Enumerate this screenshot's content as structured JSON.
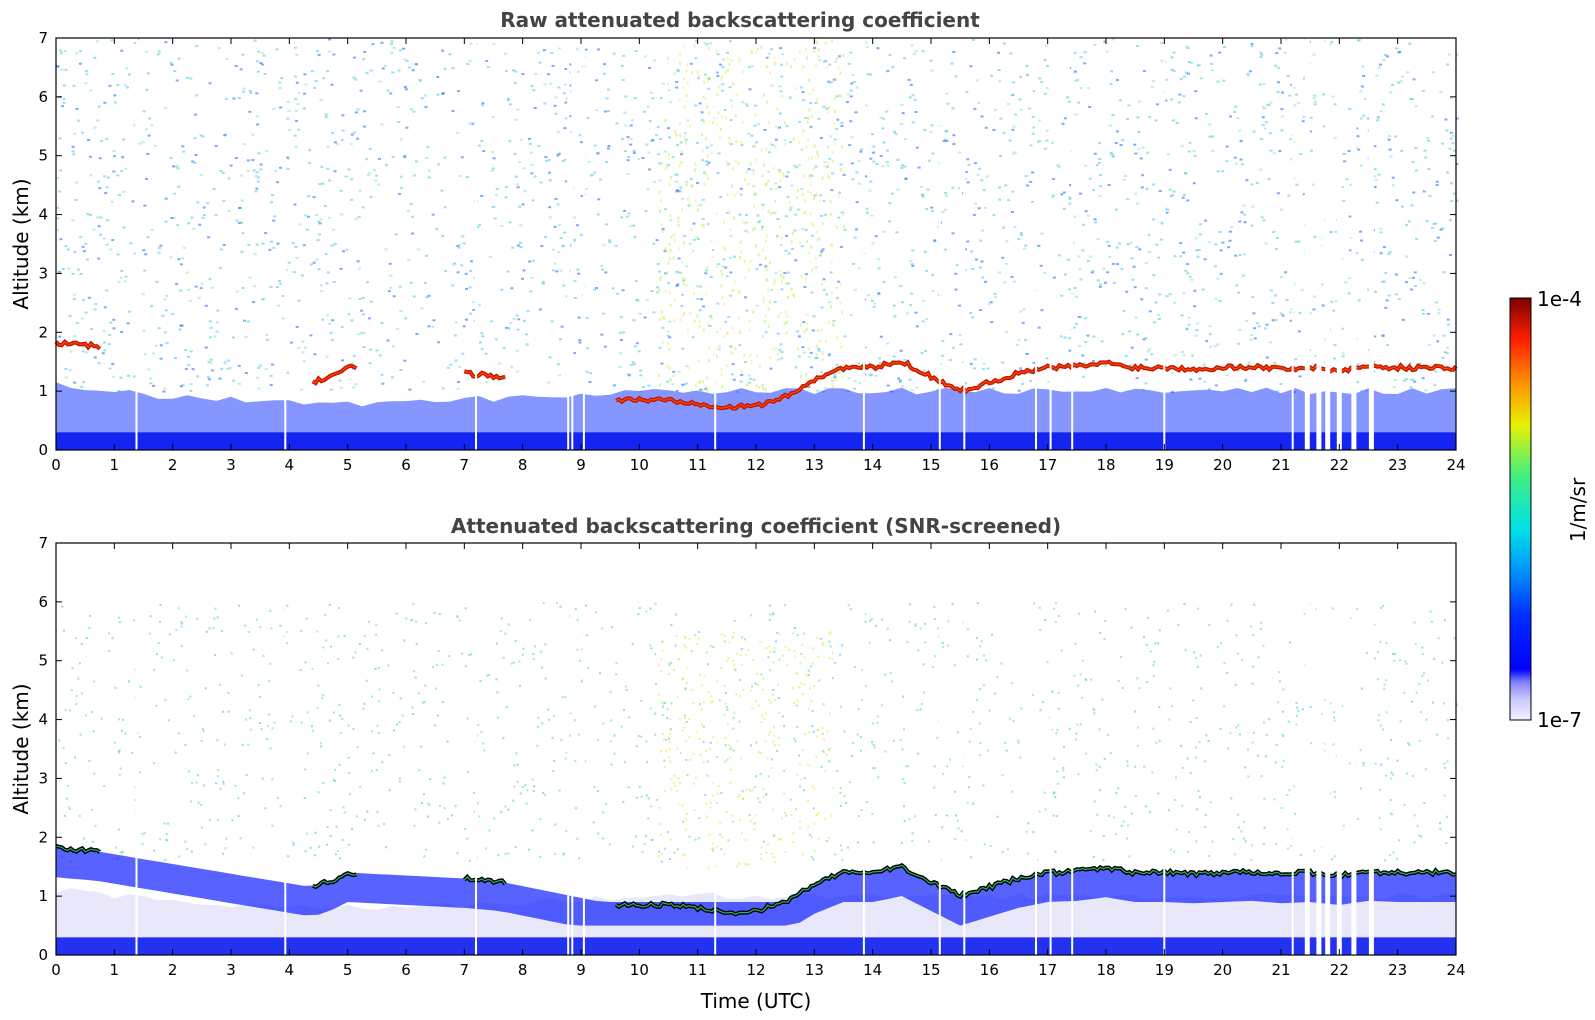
{
  "chart_data": [
    {
      "type": "heatmap",
      "title": "Raw attenuated backscattering coefficient",
      "xlabel": "",
      "ylabel": "Altitude (km)",
      "xlim": [
        0,
        24
      ],
      "ylim": [
        0,
        7
      ],
      "x_ticks": [
        "0",
        "1",
        "2",
        "3",
        "4",
        "5",
        "6",
        "7",
        "8",
        "9",
        "10",
        "11",
        "12",
        "13",
        "14",
        "15",
        "16",
        "17",
        "18",
        "19",
        "20",
        "21",
        "22",
        "23",
        "24"
      ],
      "y_ticks": [
        "0",
        "1",
        "2",
        "3",
        "4",
        "5",
        "6",
        "7"
      ],
      "features": {
        "surface_layer": {
          "top_km": 0.3
        },
        "aerosol_layer_top_km": [
          [
            0,
            1.1
          ],
          [
            2,
            0.9
          ],
          [
            4,
            0.8
          ],
          [
            6,
            0.8
          ],
          [
            8,
            0.9
          ],
          [
            10,
            1.0
          ],
          [
            12,
            1.0
          ],
          [
            14,
            1.0
          ],
          [
            16,
            1.0
          ],
          [
            18,
            1.0
          ],
          [
            20,
            1.0
          ],
          [
            22,
            1.0
          ],
          [
            24,
            1.0
          ]
        ],
        "cloud_base_km": [
          [
            0,
            1.82
          ],
          [
            0.7,
            1.76
          ],
          [
            4.4,
            1.15
          ],
          [
            4.7,
            1.25
          ],
          [
            5.0,
            1.4
          ],
          [
            7.0,
            1.3
          ],
          [
            7.6,
            1.25
          ],
          [
            9.6,
            0.85
          ],
          [
            10.5,
            0.85
          ],
          [
            11.0,
            0.8
          ],
          [
            11.5,
            0.72
          ],
          [
            12.0,
            0.75
          ],
          [
            12.5,
            0.9
          ],
          [
            13.0,
            1.2
          ],
          [
            13.5,
            1.4
          ],
          [
            14.0,
            1.4
          ],
          [
            14.5,
            1.5
          ],
          [
            15.0,
            1.25
          ],
          [
            15.5,
            1.0
          ],
          [
            16.0,
            1.15
          ],
          [
            16.5,
            1.3
          ],
          [
            17.0,
            1.4
          ],
          [
            17.5,
            1.42
          ],
          [
            18.0,
            1.48
          ],
          [
            18.5,
            1.4
          ],
          [
            19.0,
            1.4
          ],
          [
            19.5,
            1.38
          ],
          [
            20.0,
            1.4
          ],
          [
            20.5,
            1.42
          ],
          [
            21.0,
            1.38
          ],
          [
            21.5,
            1.4
          ],
          [
            22.0,
            1.35
          ],
          [
            22.5,
            1.42
          ],
          [
            23.0,
            1.4
          ],
          [
            23.5,
            1.4
          ],
          [
            24.0,
            1.4
          ]
        ],
        "data_gaps_utc": [
          1.38,
          3.93,
          7.2,
          8.78,
          8.85,
          9.05,
          11.3,
          13.85,
          15.15,
          15.57,
          16.8,
          17.05,
          17.42,
          19.0,
          21.2,
          21.45,
          21.65,
          21.8,
          22.0,
          22.25,
          22.55
        ]
      },
      "colorbar": {
        "min": "1e-7",
        "max": "1e-4",
        "label": "1/m/sr",
        "scale": "log",
        "colormap": "jet"
      }
    },
    {
      "type": "heatmap",
      "title": "Attenuated backscattering coefficient (SNR-screened)",
      "xlabel": "Time (UTC)",
      "ylabel": "Altitude (km)",
      "xlim": [
        0,
        24
      ],
      "ylim": [
        0,
        7
      ],
      "x_ticks": [
        "0",
        "1",
        "2",
        "3",
        "4",
        "5",
        "6",
        "7",
        "8",
        "9",
        "10",
        "11",
        "12",
        "13",
        "14",
        "15",
        "16",
        "17",
        "18",
        "19",
        "20",
        "21",
        "22",
        "23",
        "24"
      ],
      "y_ticks": [
        "0",
        "1",
        "2",
        "3",
        "4",
        "5",
        "6",
        "7"
      ],
      "features": {
        "surface_layer": {
          "top_km": 0.3
        },
        "screened_region": "values below SNR threshold removed (white)",
        "data_gaps_utc": [
          1.38,
          3.93,
          7.2,
          8.78,
          8.85,
          9.05,
          11.3,
          13.85,
          15.15,
          15.57,
          16.8,
          17.05,
          17.42,
          19.0,
          21.2,
          21.45,
          21.65,
          21.8,
          22.0,
          22.25,
          22.55
        ]
      },
      "colorbar": {
        "min": "1e-7",
        "max": "1e-4",
        "label": "1/m/sr",
        "scale": "log",
        "colormap": "jet"
      }
    }
  ],
  "colorbar": {
    "max_label": "1e-4",
    "min_label": "1e-7",
    "unit_label": "1/m/sr"
  },
  "colors": {
    "low": "#e8e8ff",
    "mid_low": "#0000ff",
    "mid": "#00c8d0",
    "mid_high": "#ffe000",
    "high": "#800000"
  }
}
